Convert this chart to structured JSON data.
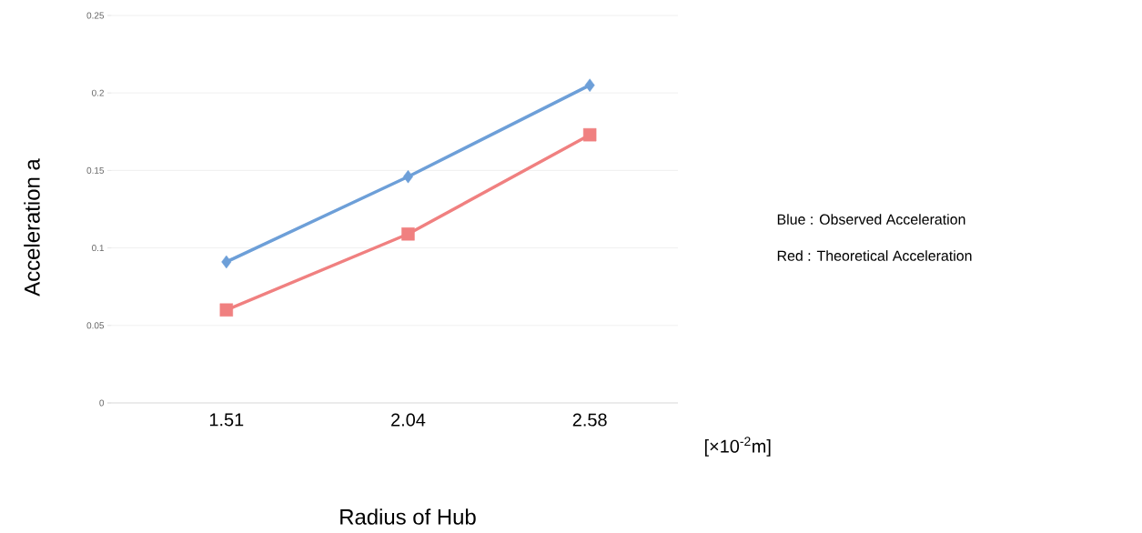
{
  "chart_data": {
    "type": "line",
    "xlabel": "Radius of Hub",
    "ylabel": "Acceleration a",
    "categories": [
      "1.51",
      "2.04",
      "2.58"
    ],
    "series": [
      {
        "color": "#6d9fd8",
        "marker": "diamond",
        "values": [
          0.091,
          0.146,
          0.205
        ]
      },
      {
        "color": "#f08080",
        "marker": "square",
        "values": [
          0.06,
          0.109,
          0.173
        ]
      }
    ],
    "ylim": [
      0,
      0.25
    ],
    "yticks": [
      0,
      0.05,
      0.1,
      0.15,
      0.2,
      0.25
    ],
    "grid": "y",
    "annotations": [
      "[×10$^{-2}$m]",
      "Blue : Observed Acceleration",
      "Red : Theoretical Acceleration"
    ]
  }
}
